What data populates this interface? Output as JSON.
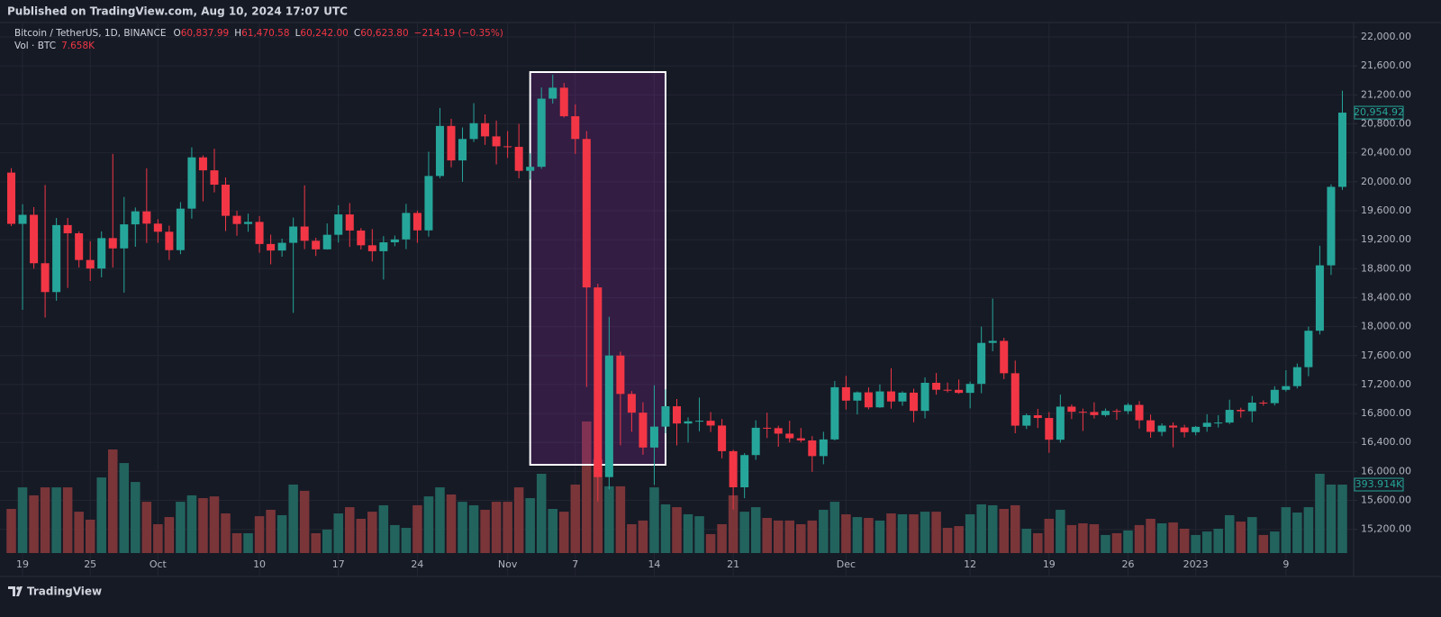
{
  "header": {
    "published": "Published on TradingView.com, Aug 10, 2024 17:07 UTC"
  },
  "footer": {
    "brand": "TradingView"
  },
  "chart_data": {
    "type": "candlestick",
    "legend": {
      "symbol": "Bitcoin / TetherUS, 1D, BINANCE",
      "ohlc": [
        {
          "key": "O",
          "value": "60,837.99"
        },
        {
          "key": "H",
          "value": "61,470.58"
        },
        {
          "key": "L",
          "value": "60,242.00"
        },
        {
          "key": "C",
          "value": "60,623.80"
        }
      ],
      "change": "−214.19 (−0.35%)",
      "volume_title": "Vol · BTC",
      "volume_value": "7.658K"
    },
    "x": [
      "2022-09-18",
      "2022-09-19",
      "2022-09-20",
      "2022-09-21",
      "2022-09-22",
      "2022-09-23",
      "2022-09-24",
      "2022-09-25",
      "2022-09-26",
      "2022-09-27",
      "2022-09-28",
      "2022-09-29",
      "2022-09-30",
      "2022-10-01",
      "2022-10-02",
      "2022-10-03",
      "2022-10-04",
      "2022-10-05",
      "2022-10-06",
      "2022-10-07",
      "2022-10-08",
      "2022-10-09",
      "2022-10-10",
      "2022-10-11",
      "2022-10-12",
      "2022-10-13",
      "2022-10-14",
      "2022-10-15",
      "2022-10-16",
      "2022-10-17",
      "2022-10-18",
      "2022-10-19",
      "2022-10-20",
      "2022-10-21",
      "2022-10-22",
      "2022-10-23",
      "2022-10-24",
      "2022-10-25",
      "2022-10-26",
      "2022-10-27",
      "2022-10-28",
      "2022-10-29",
      "2022-10-30",
      "2022-10-31",
      "2022-11-01",
      "2022-11-02",
      "2022-11-03",
      "2022-11-04",
      "2022-11-05",
      "2022-11-06",
      "2022-11-07",
      "2022-11-08",
      "2022-11-09",
      "2022-11-10",
      "2022-11-11",
      "2022-11-12",
      "2022-11-13",
      "2022-11-14",
      "2022-11-15",
      "2022-11-16",
      "2022-11-17",
      "2022-11-18",
      "2022-11-19",
      "2022-11-20",
      "2022-11-21",
      "2022-11-22",
      "2022-11-23",
      "2022-11-24",
      "2022-11-25",
      "2022-11-26",
      "2022-11-27",
      "2022-11-28",
      "2022-11-29",
      "2022-11-30",
      "2022-12-01",
      "2022-12-02",
      "2022-12-03",
      "2022-12-04",
      "2022-12-05",
      "2022-12-06",
      "2022-12-07",
      "2022-12-08",
      "2022-12-09",
      "2022-12-10",
      "2022-12-11",
      "2022-12-12",
      "2022-12-13",
      "2022-12-14",
      "2022-12-15",
      "2022-12-16",
      "2022-12-17",
      "2022-12-18",
      "2022-12-19",
      "2022-12-20",
      "2022-12-21",
      "2022-12-22",
      "2022-12-23",
      "2022-12-24",
      "2022-12-25",
      "2022-12-26",
      "2022-12-27",
      "2022-12-28",
      "2022-12-29",
      "2022-12-30",
      "2022-12-31",
      "2023-01-01",
      "2023-01-02",
      "2023-01-03",
      "2023-01-04",
      "2023-01-05",
      "2023-01-06",
      "2023-01-07",
      "2023-01-08",
      "2023-01-09",
      "2023-01-10",
      "2023-01-11",
      "2023-01-12",
      "2023-01-13",
      "2023-01-14"
    ],
    "open": [
      20127,
      19419,
      19544,
      18875,
      18477,
      19402,
      19289,
      18920,
      18802,
      19222,
      19080,
      19412,
      19591,
      19422,
      19310,
      19056,
      19629,
      20337,
      20158,
      19960,
      19530,
      19417,
      19446,
      19141,
      19051,
      19157,
      19382,
      19185,
      19067,
      19268,
      19549,
      19327,
      19123,
      19041,
      19164,
      19204,
      19570,
      19329,
      20080,
      20771,
      20295,
      20591,
      20809,
      20627,
      20490,
      20482,
      20151,
      20207,
      21148,
      21299,
      20905,
      20591,
      18541,
      15922,
      17601,
      17070,
      16812,
      16330,
      16619,
      16900,
      16662,
      16692,
      16700,
      16634,
      16280,
      15781,
      16226,
      16603,
      16598,
      16522,
      16458,
      16428,
      16212,
      16442,
      17163,
      16978,
      17092,
      16885,
      17105,
      16966,
      17088,
      16836,
      17224,
      17128,
      17127,
      17085,
      17209,
      17775,
      17803,
      17356,
      16632,
      16776,
      16738,
      16438,
      16895,
      16824,
      16821,
      16778,
      16836,
      16832,
      16919,
      16706,
      16547,
      16633,
      16607,
      16542,
      16616,
      16672,
      16675,
      16850,
      16831,
      16950,
      16943,
      17127,
      17178,
      17440,
      17943,
      18846,
      19930
    ],
    "high": [
      20188,
      19690,
      19650,
      19956,
      19500,
      19500,
      19316,
      19180,
      19315,
      20385,
      19790,
      19645,
      20185,
      19485,
      19395,
      19719,
      20475,
      20365,
      20456,
      20060,
      19600,
      19560,
      19525,
      19270,
      19215,
      19505,
      19951,
      19227,
      19425,
      19676,
      19706,
      19360,
      19347,
      19250,
      19257,
      19695,
      19601,
      20415,
      21020,
      20870,
      20750,
      21085,
      20930,
      20845,
      20700,
      20800,
      20393,
      21302,
      21480,
      21365,
      21069,
      20700,
      18590,
      18136,
      17655,
      17109,
      16955,
      17190,
      17134,
      17000,
      16747,
      17020,
      16820,
      16725,
      16300,
      16253,
      16706,
      16812,
      16631,
      16700,
      16600,
      16487,
      16548,
      17249,
      17320,
      17105,
      17160,
      17202,
      17425,
      17107,
      17142,
      17299,
      17360,
      17227,
      17270,
      17241,
      18000,
      18387,
      17846,
      17531,
      16800,
      16864,
      16820,
      17061,
      16925,
      16868,
      16955,
      16869,
      16865,
      16944,
      16972,
      16785,
      16664,
      16677,
      16644,
      16629,
      16789,
      16777,
      16991,
      16880,
      17041,
      16981,
      17176,
      17398,
      17490,
      18000,
      19117,
      19964,
      21258
    ],
    "low": [
      19387,
      18232,
      18800,
      18125,
      18357,
      18534,
      18817,
      18630,
      18680,
      18817,
      18470,
      19102,
      19155,
      19157,
      18920,
      19000,
      19490,
      19730,
      19853,
      19320,
      19255,
      19310,
      19020,
      18860,
      18965,
      18190,
      19070,
      18975,
      19063,
      19160,
      19100,
      19065,
      18900,
      18650,
      19110,
      19070,
      19157,
      19242,
      20050,
      20200,
      20000,
      20550,
      20510,
      20240,
      20330,
      20048,
      20031,
      20180,
      21080,
      20886,
      20384,
      17166,
      15588,
      15754,
      16361,
      16548,
      16230,
      15815,
      16527,
      16360,
      16400,
      16555,
      16545,
      16180,
      15476,
      15630,
      16160,
      16460,
      16340,
      16400,
      16400,
      15995,
      16100,
      16428,
      16855,
      16787,
      16858,
      16878,
      16867,
      16906,
      16678,
      16733,
      17060,
      17091,
      17071,
      16871,
      17080,
      17660,
      17275,
      16527,
      16585,
      16600,
      16257,
      16398,
      16723,
      16559,
      16731,
      16757,
      16713,
      16791,
      16592,
      16465,
      16488,
      16333,
      16470,
      16499,
      16548,
      16606,
      16654,
      16742,
      16679,
      16908,
      16911,
      17104,
      17146,
      17315,
      17892,
      18714,
      19888
    ],
    "close": [
      19419,
      19544,
      18875,
      18477,
      19402,
      19289,
      18920,
      18802,
      19222,
      19080,
      19412,
      19591,
      19422,
      19310,
      19056,
      19629,
      20337,
      20158,
      19960,
      19530,
      19417,
      19446,
      19141,
      19051,
      19157,
      19382,
      19185,
      19067,
      19268,
      19549,
      19327,
      19123,
      19041,
      19164,
      19204,
      19570,
      19329,
      20080,
      20771,
      20295,
      20591,
      20809,
      20627,
      20490,
      20482,
      20151,
      20207,
      21148,
      21299,
      20905,
      20591,
      18541,
      15922,
      17601,
      17070,
      16812,
      16330,
      16619,
      16900,
      16662,
      16692,
      16700,
      16634,
      16280,
      15781,
      16226,
      16603,
      16598,
      16522,
      16458,
      16428,
      16212,
      16442,
      17163,
      16978,
      17092,
      16885,
      17105,
      16966,
      17088,
      16836,
      17224,
      17128,
      17127,
      17085,
      17209,
      17775,
      17803,
      17356,
      16632,
      16776,
      16738,
      16438,
      16895,
      16824,
      16821,
      16778,
      16836,
      16832,
      16919,
      16706,
      16547,
      16633,
      16607,
      16542,
      16616,
      16672,
      16675,
      16850,
      16831,
      16950,
      16943,
      17127,
      17178,
      17440,
      17943,
      18846,
      19930,
      20954.92
    ],
    "volume": [
      254000,
      378000,
      332000,
      378000,
      378000,
      378000,
      238000,
      192000,
      435000,
      596000,
      518000,
      409000,
      295000,
      166000,
      207000,
      295000,
      332000,
      316000,
      326000,
      228000,
      114000,
      114000,
      212000,
      249000,
      218000,
      394000,
      358000,
      114000,
      135000,
      228000,
      264000,
      197000,
      238000,
      275000,
      161000,
      145000,
      275000,
      326000,
      378000,
      337000,
      295000,
      275000,
      249000,
      295000,
      295000,
      378000,
      316000,
      456000,
      254000,
      238000,
      394000,
      757000,
      540000,
      384000,
      384000,
      166000,
      187000,
      378000,
      280000,
      264000,
      223000,
      212000,
      109000,
      166000,
      332000,
      238000,
      264000,
      202000,
      187000,
      187000,
      166000,
      187000,
      249000,
      295000,
      223000,
      207000,
      202000,
      187000,
      228000,
      223000,
      223000,
      238000,
      238000,
      145000,
      155000,
      223000,
      280000,
      275000,
      254000,
      275000,
      140000,
      114000,
      197000,
      249000,
      161000,
      171000,
      166000,
      104000,
      114000,
      130000,
      161000,
      197000,
      171000,
      176000,
      140000,
      104000,
      124000,
      140000,
      218000,
      181000,
      207000,
      104000,
      124000,
      264000,
      233000,
      264000,
      456000,
      394000,
      393914
    ],
    "last_price_label": "20,954.92",
    "last_volume_label": "393.914K",
    "xlim": [
      "2022-09-17",
      "2023-01-15"
    ],
    "xticks": [
      {
        "value": "2022-09-19",
        "label": "19"
      },
      {
        "value": "2022-09-25",
        "label": "25"
      },
      {
        "value": "2022-10-01",
        "label": "Oct"
      },
      {
        "value": "2022-10-10",
        "label": "10"
      },
      {
        "value": "2022-10-17",
        "label": "17"
      },
      {
        "value": "2022-10-24",
        "label": "24"
      },
      {
        "value": "2022-11-01",
        "label": "Nov"
      },
      {
        "value": "2022-11-07",
        "label": "7"
      },
      {
        "value": "2022-11-14",
        "label": "14"
      },
      {
        "value": "2022-11-21",
        "label": "21"
      },
      {
        "value": "2022-12-01",
        "label": "Dec"
      },
      {
        "value": "2022-12-12",
        "label": "12"
      },
      {
        "value": "2022-12-19",
        "label": "19"
      },
      {
        "value": "2022-12-26",
        "label": "26"
      },
      {
        "value": "2023-01-01",
        "label": "2023"
      },
      {
        "value": "2023-01-09",
        "label": "9"
      }
    ],
    "ylim": [
      14873,
      22162
    ],
    "yticks": [
      {
        "value": 15200,
        "label": "15,200.00"
      },
      {
        "value": 15600,
        "label": "15,600.00"
      },
      {
        "value": 16000,
        "label": "16,000.00"
      },
      {
        "value": 16400,
        "label": "16,400.00"
      },
      {
        "value": 16800,
        "label": "16,800.00"
      },
      {
        "value": 17200,
        "label": "17,200.00"
      },
      {
        "value": 17600,
        "label": "17,600.00"
      },
      {
        "value": 18000,
        "label": "18,000.00"
      },
      {
        "value": 18400,
        "label": "18,400.00"
      },
      {
        "value": 18800,
        "label": "18,800.00"
      },
      {
        "value": 19200,
        "label": "19,200.00"
      },
      {
        "value": 19600,
        "label": "19,600.00"
      },
      {
        "value": 20000,
        "label": "20,000.00"
      },
      {
        "value": 20400,
        "label": "20,400.00"
      },
      {
        "value": 20800,
        "label": "20,800.00"
      },
      {
        "value": 21200,
        "label": "21,200.00"
      },
      {
        "value": 21600,
        "label": "21,600.00"
      },
      {
        "value": 22000,
        "label": "22,000.00"
      }
    ],
    "volume_lim": [
      0,
      3037000
    ],
    "grid": true,
    "up_color": "#26a69a",
    "down_color": "#f23645",
    "volume_up_color": "#22635e",
    "volume_down_color": "#7a3539",
    "annotation_box": {
      "x": [
        "2022-11-03",
        "2022-11-15"
      ],
      "y": [
        21515,
        16092
      ],
      "color": "#9c27b0",
      "border_color": "#ffffff"
    }
  }
}
